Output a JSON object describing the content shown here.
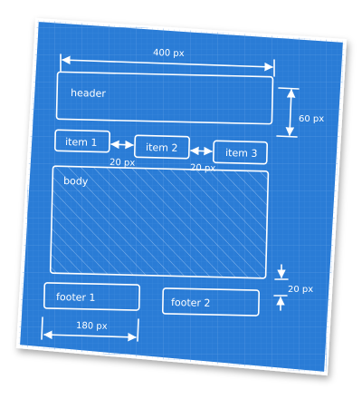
{
  "diagram": {
    "colors": {
      "paper": "#2b7bd6",
      "paper_dark": "#1f68c2",
      "grid": "#4f93e0",
      "line": "#ffffff"
    },
    "boxes": {
      "header": "header",
      "item1": "item 1",
      "item2": "item 2",
      "item3": "item 3",
      "body": "body",
      "footer1": "footer 1",
      "footer2": "footer 2"
    },
    "dimensions": {
      "width_total": "400 px",
      "header_height": "60 px",
      "gap_items_1": "20 px",
      "gap_items_2": "20 px",
      "gap_body_footer": "20 px",
      "footer_width": "180 px"
    }
  }
}
